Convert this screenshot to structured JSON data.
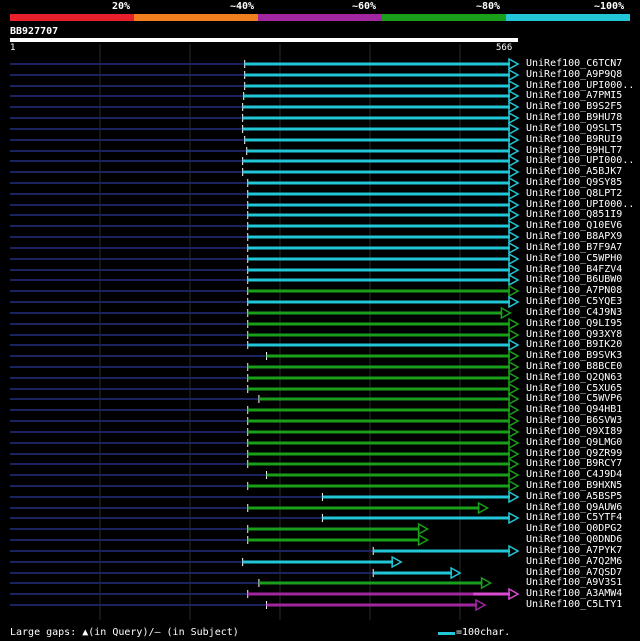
{
  "legend": {
    "labels": [
      "20%",
      "~40%",
      "~60%",
      "~80%",
      "~100%"
    ],
    "colors": [
      "#e8202b",
      "#f07f1e",
      "#a126a0",
      "#1a9f1a",
      "#22c6d6"
    ]
  },
  "query": {
    "id": "BB927707",
    "start": "1",
    "end": "566"
  },
  "hits": [
    {
      "label": "UniRef100_C6TCN7",
      "start": 0.462,
      "end": 1.0,
      "color": "cyan",
      "fill": 1
    },
    {
      "label": "UniRef100_A9P9Q8",
      "start": 0.462,
      "end": 1.0,
      "color": "cyan",
      "fill": 1
    },
    {
      "label": "UniRef100_UPI000..",
      "start": 0.462,
      "end": 1.0,
      "color": "cyan",
      "fill": 1
    },
    {
      "label": "UniRef100_A7PMI5",
      "start": 0.46,
      "end": 1.0,
      "color": "cyan",
      "fill": 1
    },
    {
      "label": "UniRef100_B9S2F5",
      "start": 0.458,
      "end": 1.0,
      "color": "cyan",
      "fill": 1
    },
    {
      "label": "UniRef100_B9HU78",
      "start": 0.458,
      "end": 1.0,
      "color": "cyan",
      "fill": 1
    },
    {
      "label": "UniRef100_Q9SLT5",
      "start": 0.458,
      "end": 1.0,
      "color": "cyan",
      "fill": 1
    },
    {
      "label": "UniRef100_B9RUI9",
      "start": 0.462,
      "end": 1.0,
      "color": "cyan",
      "fill": 1
    },
    {
      "label": "UniRef100_B9HLT7",
      "start": 0.466,
      "end": 1.0,
      "color": "cyan",
      "fill": 1
    },
    {
      "label": "UniRef100_UPI000..",
      "start": 0.458,
      "end": 1.0,
      "color": "cyan",
      "fill": 1
    },
    {
      "label": "UniRef100_A5BJK7",
      "start": 0.458,
      "end": 1.0,
      "color": "cyan",
      "fill": 1
    },
    {
      "label": "UniRef100_Q9SY85",
      "start": 0.468,
      "end": 1.0,
      "color": "cyan",
      "fill": 1
    },
    {
      "label": "UniRef100_Q8LPT2",
      "start": 0.468,
      "end": 1.0,
      "color": "cyan",
      "fill": 1
    },
    {
      "label": "UniRef100_UPI000..",
      "start": 0.468,
      "end": 1.0,
      "color": "cyan",
      "fill": 1
    },
    {
      "label": "UniRef100_Q851I9",
      "start": 0.468,
      "end": 1.0,
      "color": "cyan",
      "fill": 1
    },
    {
      "label": "UniRef100_Q10EV6",
      "start": 0.468,
      "end": 1.0,
      "color": "cyan",
      "fill": 1
    },
    {
      "label": "UniRef100_B8APX9",
      "start": 0.468,
      "end": 1.0,
      "color": "cyan",
      "fill": 1
    },
    {
      "label": "UniRef100_B7F9A7",
      "start": 0.468,
      "end": 1.0,
      "color": "cyan",
      "fill": 1
    },
    {
      "label": "UniRef100_C5WPH0",
      "start": 0.468,
      "end": 1.0,
      "color": "cyan",
      "fill": 1
    },
    {
      "label": "UniRef100_B4FZV4",
      "start": 0.468,
      "end": 1.0,
      "color": "cyan",
      "fill": 1
    },
    {
      "label": "UniRef100_B6UBW0",
      "start": 0.468,
      "end": 1.0,
      "color": "cyan",
      "fill": 1
    },
    {
      "label": "UniRef100_A7PN08",
      "start": 0.468,
      "end": 1.0,
      "color": "green",
      "fill": 1
    },
    {
      "label": "UniRef100_C5YQE3",
      "start": 0.468,
      "end": 1.0,
      "color": "cyan",
      "fill": 1
    },
    {
      "label": "UniRef100_C4J9N3",
      "start": 0.468,
      "end": 0.985,
      "color": "green",
      "fill": 1
    },
    {
      "label": "UniRef100_Q9LI95",
      "start": 0.468,
      "end": 1.0,
      "color": "green",
      "fill": 1
    },
    {
      "label": "UniRef100_Q93XY8",
      "start": 0.468,
      "end": 1.0,
      "color": "green",
      "fill": 1
    },
    {
      "label": "UniRef100_B9IK20",
      "start": 0.468,
      "end": 1.0,
      "color": "cyan",
      "fill": 1
    },
    {
      "label": "UniRef100_B9SVK3",
      "start": 0.505,
      "end": 1.0,
      "color": "green",
      "fill": 1
    },
    {
      "label": "UniRef100_B8BCE0",
      "start": 0.468,
      "end": 1.0,
      "color": "green",
      "fill": 1
    },
    {
      "label": "UniRef100_Q2QN63",
      "start": 0.468,
      "end": 1.0,
      "color": "green",
      "fill": 1
    },
    {
      "label": "UniRef100_C5XU65",
      "start": 0.468,
      "end": 1.0,
      "color": "green",
      "fill": 1
    },
    {
      "label": "UniRef100_C5WVP6",
      "start": 0.49,
      "end": 1.0,
      "color": "green",
      "fill": 1
    },
    {
      "label": "UniRef100_Q94HB1",
      "start": 0.468,
      "end": 1.0,
      "color": "green",
      "fill": 1
    },
    {
      "label": "UniRef100_B6SVW3",
      "start": 0.468,
      "end": 1.0,
      "color": "green",
      "fill": 1
    },
    {
      "label": "UniRef100_Q9XI89",
      "start": 0.468,
      "end": 1.0,
      "color": "green",
      "fill": 1
    },
    {
      "label": "UniRef100_Q9LMG0",
      "start": 0.468,
      "end": 1.0,
      "color": "green",
      "fill": 1
    },
    {
      "label": "UniRef100_Q9ZR99",
      "start": 0.468,
      "end": 1.0,
      "color": "green",
      "fill": 1
    },
    {
      "label": "UniRef100_B9RCY7",
      "start": 0.468,
      "end": 1.0,
      "color": "green",
      "fill": 1
    },
    {
      "label": "UniRef100_C4J9D4",
      "start": 0.505,
      "end": 1.0,
      "color": "green",
      "fill": 1
    },
    {
      "label": "UniRef100_B9HXN5",
      "start": 0.468,
      "end": 1.0,
      "color": "green",
      "fill": 1
    },
    {
      "label": "UniRef100_A5BSP5",
      "start": 0.615,
      "end": 1.0,
      "color": "cyan",
      "fill": 1
    },
    {
      "label": "UniRef100_Q9AUW6",
      "start": 0.468,
      "end": 0.94,
      "color": "green",
      "fill": 1
    },
    {
      "label": "UniRef100_C5YTF4",
      "start": 0.615,
      "end": 1.0,
      "color": "cyan",
      "fill": 1
    },
    {
      "label": "UniRef100_Q0DPG2",
      "start": 0.468,
      "end": 0.822,
      "color": "green",
      "fill": 1
    },
    {
      "label": "UniRef100_Q0DND6",
      "start": 0.468,
      "end": 0.822,
      "color": "green",
      "fill": 1
    },
    {
      "label": "UniRef100_A7PYK7",
      "start": 0.715,
      "end": 1.0,
      "color": "cyan",
      "fill": 1
    },
    {
      "label": "UniRef100_A7Q2M6",
      "start": 0.458,
      "end": 0.77,
      "color": "cyan",
      "fill": 1
    },
    {
      "label": "UniRef100_A7QSD7",
      "start": 0.715,
      "end": 0.886,
      "color": "cyan",
      "fill": 1
    },
    {
      "label": "UniRef100_A9V3S1",
      "start": 0.49,
      "end": 0.946,
      "color": "green",
      "fill": 1
    },
    {
      "label": "UniRef100_A3AMW4",
      "start": 0.468,
      "end": 1.0,
      "color": "purple",
      "fill": 0.86
    },
    {
      "label": "UniRef100_C5LTY1",
      "start": 0.505,
      "end": 0.935,
      "color": "purple",
      "fill": 1
    }
  ],
  "footer": {
    "large_gaps": "Large gaps: ▲(in Query)/— (in Subject)",
    "scale": "=100char."
  }
}
